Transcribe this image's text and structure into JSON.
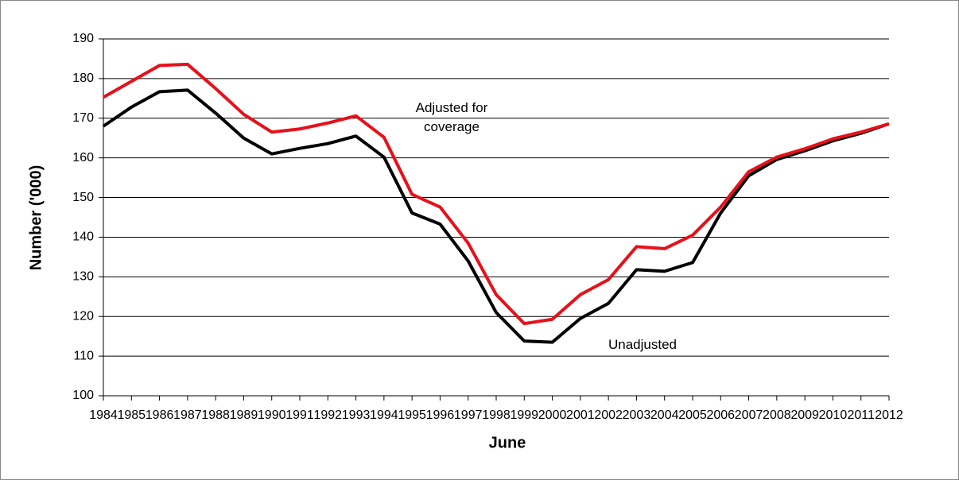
{
  "chart_data": {
    "type": "line",
    "x_label": "June",
    "y_label": "Number ('000)",
    "categories": [
      "1984",
      "1985",
      "1986",
      "1987",
      "1988",
      "1989",
      "1990",
      "1991",
      "1992",
      "1993",
      "1994",
      "1995",
      "1996",
      "1997",
      "1998",
      "1999",
      "2000",
      "2001",
      "2002",
      "2003",
      "2004",
      "2005",
      "2006",
      "2007",
      "2008",
      "2009",
      "2010",
      "2011",
      "2012"
    ],
    "series": [
      {
        "name": "Unadjusted",
        "color": "#000000",
        "values": [
          168.0,
          172.8,
          176.7,
          177.1,
          171.3,
          165.0,
          161.0,
          162.4,
          163.6,
          165.5,
          160.2,
          146.1,
          143.3,
          134.0,
          121.0,
          113.8,
          113.5,
          119.5,
          123.3,
          131.8,
          131.4,
          133.6,
          146.1,
          155.5,
          159.6,
          161.8,
          164.3,
          166.2,
          168.6
        ]
      },
      {
        "name": "Adjusted for coverage",
        "color": "#e8101a",
        "values": [
          175.3,
          179.3,
          183.3,
          183.6,
          177.5,
          171.0,
          166.5,
          167.3,
          168.8,
          170.6,
          165.2,
          150.8,
          147.6,
          138.5,
          125.5,
          118.2,
          119.3,
          125.5,
          129.3,
          137.6,
          137.1,
          140.5,
          147.6,
          156.5,
          160.2,
          162.3,
          164.8,
          166.5,
          168.6
        ]
      }
    ],
    "ylim": [
      100,
      190
    ],
    "yticks": [
      100,
      110,
      120,
      130,
      140,
      150,
      160,
      170,
      180,
      190
    ],
    "grid": true
  }
}
